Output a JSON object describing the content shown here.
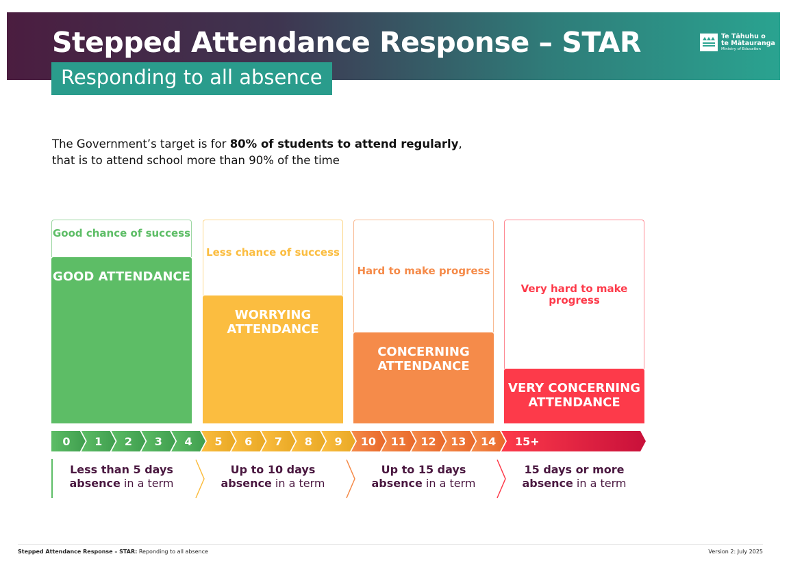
{
  "header": {
    "title": "Stepped Attendance Response – STAR",
    "subtitle": "Responding to all absence",
    "logo_line1": "Te Tāhuhu o",
    "logo_line2": "te Mātauranga",
    "logo_line3": "Ministry of Education"
  },
  "intro": {
    "part1": "The Government’s target is for ",
    "bold": "80% of students to attend regularly",
    "part2": ",",
    "line2": "that is to attend school more than 90% of the time"
  },
  "levels": [
    {
      "chance": "Good chance of success",
      "level": "GOOD ATTENDANCE",
      "color": "#5dbd66",
      "desc_bold": "Less than 5 days",
      "desc_bold2": "absence",
      "desc_rest": " in a term"
    },
    {
      "chance": "Less chance of success",
      "level": "WORRYING ATTENDANCE",
      "color": "#fbbd40",
      "desc_bold": "Up to 10 days",
      "desc_bold2": "absence",
      "desc_rest": " in a term"
    },
    {
      "chance": "Hard to make progress",
      "level": "CONCERNING ATTENDANCE",
      "color": "#f58b4a",
      "desc_bold": "Up to 15 days",
      "desc_bold2": "absence",
      "desc_rest": " in a term"
    },
    {
      "chance": "Very hard to make progress",
      "level": "VERY CONCERNING ATTENDANCE",
      "color": "#fd3a4a",
      "desc_bold": "15 days or more",
      "desc_bold2": "absence",
      "desc_rest": " in a term"
    }
  ],
  "days": [
    "0",
    "1",
    "2",
    "3",
    "4",
    "5",
    "6",
    "7",
    "8",
    "9",
    "10",
    "11",
    "12",
    "13",
    "14",
    "15+"
  ],
  "footer": {
    "left_bold": "Stepped Attendance Response – STAR:",
    "left": " Reponding to all absence",
    "right": "Version 2: July 2025"
  }
}
